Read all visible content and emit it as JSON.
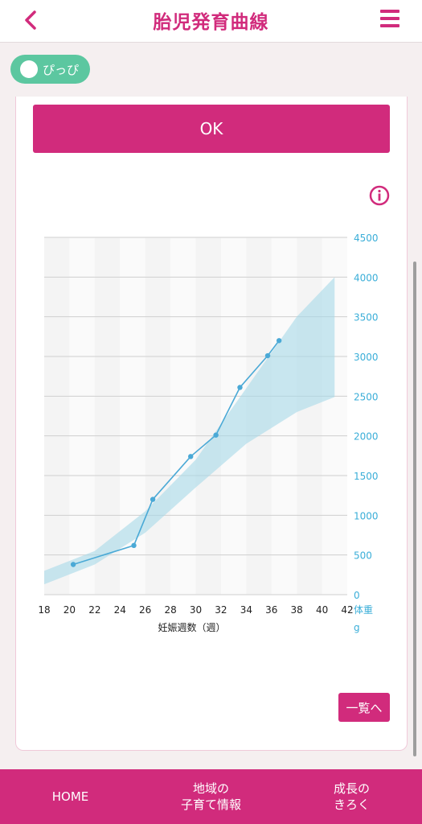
{
  "header": {
    "title": "胎児発育曲線",
    "back_icon": "chevron-left-icon",
    "menu_icon": "hamburger-menu-icon"
  },
  "child_chip": {
    "name": "ぴっぴ",
    "icon": "baby-face-icon"
  },
  "actions": {
    "ok_label": "OK",
    "list_label": "一覧へ",
    "info_icon": "info-icon"
  },
  "colors": {
    "brand": "#d12b7c",
    "chip": "#5cc7a0",
    "series": "#4aa9d6",
    "band": "#a6d8e8",
    "axis": "#3aaed8"
  },
  "chart_data": {
    "type": "line",
    "title": "",
    "xlabel": "妊娠週数（週）",
    "ylabel": "体重 g",
    "x_ticks": [
      "18",
      "20",
      "22",
      "24",
      "26",
      "28",
      "30",
      "32",
      "34",
      "36",
      "38",
      "40",
      "42"
    ],
    "y_ticks": [
      "0",
      "500",
      "1000",
      "1500",
      "2000",
      "2500",
      "3000",
      "3500",
      "4000",
      "4500"
    ],
    "xlim": [
      18,
      42
    ],
    "ylim": [
      0,
      4500
    ],
    "grid": true,
    "reference_band": {
      "x": [
        18,
        22,
        26,
        30,
        34,
        38,
        41
      ],
      "lower": [
        130,
        380,
        780,
        1350,
        1900,
        2300,
        2490
      ],
      "upper": [
        300,
        550,
        1050,
        1700,
        2600,
        3500,
        4000
      ]
    },
    "series": [
      {
        "x": [
          20.3,
          25.1,
          26.6,
          29.6,
          31.6,
          33.5,
          35.7,
          36.6
        ],
        "y": [
          380,
          620,
          1200,
          1740,
          2010,
          2610,
          3010,
          3200
        ]
      }
    ]
  },
  "bottom_nav": [
    {
      "label": "HOME"
    },
    {
      "label": "地域の\n子育て情報"
    },
    {
      "label": "成長の\nきろく"
    }
  ]
}
